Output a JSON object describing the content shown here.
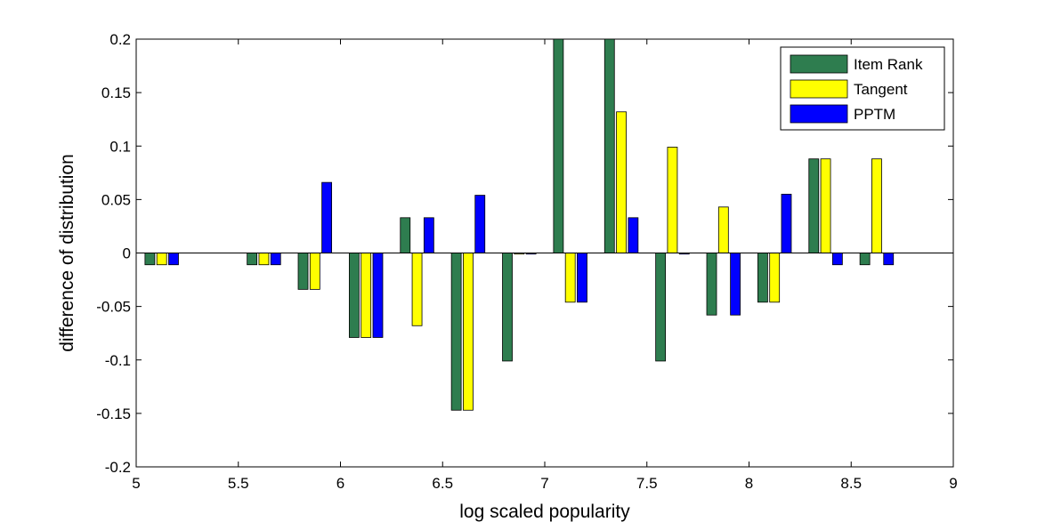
{
  "chart_data": {
    "type": "bar",
    "title": "",
    "xlabel": "log scaled popularity",
    "ylabel": "difference of distribution",
    "xlim": [
      5,
      9
    ],
    "ylim": [
      -0.2,
      0.2
    ],
    "xticks": [
      "5",
      "5.5",
      "6",
      "6.5",
      "7",
      "7.5",
      "8",
      "8.5",
      "9"
    ],
    "yticks": [
      "0.2",
      "0.15",
      "0.1",
      "0.05",
      "0",
      "-0.05",
      "-0.1",
      "-0.15",
      "-0.2"
    ],
    "grid": false,
    "legend_position": "top-right",
    "x": [
      5.125,
      5.625,
      5.875,
      6.125,
      6.375,
      6.625,
      6.875,
      7.125,
      7.375,
      7.625,
      7.875,
      8.125,
      8.375,
      8.625
    ],
    "series": [
      {
        "name": "Item Rank",
        "color": "#2e7d4f",
        "values": [
          -0.011,
          -0.011,
          -0.034,
          -0.079,
          0.033,
          -0.147,
          -0.101,
          0.2,
          0.2,
          -0.101,
          -0.058,
          -0.046,
          0.088,
          -0.011
        ]
      },
      {
        "name": "Tangent",
        "color": "#ffff00",
        "values": [
          -0.011,
          -0.011,
          -0.034,
          -0.079,
          -0.068,
          -0.147,
          -0.001,
          -0.046,
          0.132,
          0.099,
          0.043,
          -0.046,
          0.088,
          0.088
        ]
      },
      {
        "name": "PPTM",
        "color": "#0000ff",
        "values": [
          -0.011,
          -0.011,
          0.066,
          -0.079,
          0.033,
          0.054,
          -0.001,
          -0.046,
          0.033,
          -0.001,
          -0.058,
          0.055,
          -0.011,
          -0.011
        ]
      }
    ]
  }
}
